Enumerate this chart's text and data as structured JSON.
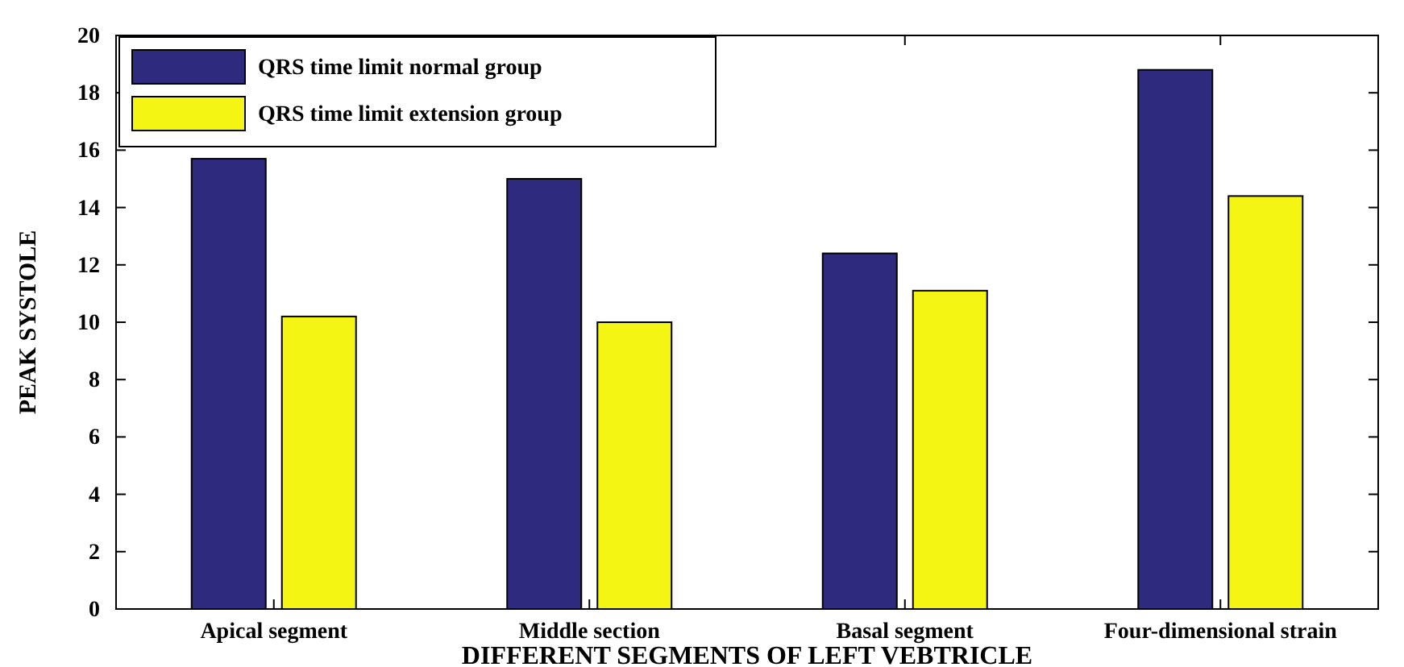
{
  "chart_data": {
    "type": "bar",
    "xlabel": "DIFFERENT SEGMENTS OF LEFT VEBTRICLE",
    "ylabel": "PEAK SYSTOLE",
    "categories": [
      "Apical segment",
      "Middle section",
      "Basal segment",
      "Four-dimensional strain"
    ],
    "series": [
      {
        "name": "QRS time limit normal group",
        "color": "#2e2a7e",
        "values": [
          15.7,
          15.0,
          12.4,
          18.8
        ]
      },
      {
        "name": "QRS time limit extension group",
        "color": "#f5f514",
        "values": [
          10.2,
          10.0,
          11.1,
          14.4
        ]
      }
    ],
    "ylim": [
      0,
      20
    ],
    "yticks": [
      0,
      2,
      4,
      6,
      8,
      10,
      12,
      14,
      16,
      18,
      20
    ],
    "grid": false,
    "legend": "top left"
  }
}
